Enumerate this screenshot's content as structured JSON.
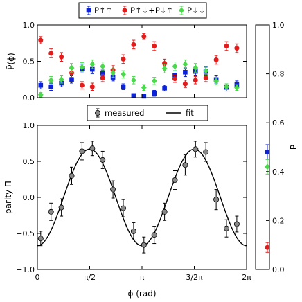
{
  "chart_data": [
    {
      "id": "top",
      "type": "scatter",
      "ylabel": "P̃(ϕ)",
      "xlim": [
        0,
        6.2832
      ],
      "ylim": [
        0,
        1.0
      ],
      "yticks": [
        {
          "v": 0.0,
          "label": "0.0"
        },
        {
          "v": 0.5,
          "label": "0.5"
        },
        {
          "v": 1.0,
          "label": "1.0"
        }
      ],
      "legend": {
        "placement": "top-outside",
        "entries": [
          {
            "label": "P↑↑",
            "color": "#0b22d9",
            "marker": "square"
          },
          {
            "label": "P↑↓+P↓↑",
            "color": "#e31b1b",
            "marker": "circle"
          },
          {
            "label": "P↓↓",
            "color": "#4ad94a",
            "marker": "diamond"
          }
        ]
      },
      "x": [
        0.1,
        0.41,
        0.72,
        1.03,
        1.34,
        1.65,
        1.96,
        2.27,
        2.58,
        2.89,
        3.2,
        3.51,
        3.82,
        4.13,
        4.44,
        4.75,
        5.06,
        5.37,
        5.68,
        5.99
      ],
      "series": [
        {
          "name": "P↑↑",
          "color": "#0b22d9",
          "marker": "square",
          "values": [
            0.17,
            0.15,
            0.2,
            0.25,
            0.4,
            0.39,
            0.33,
            0.28,
            0.15,
            0.03,
            0.02,
            0.06,
            0.13,
            0.31,
            0.35,
            0.36,
            0.36,
            0.25,
            0.14,
            0.18
          ],
          "err": [
            0.05,
            0.05,
            0.05,
            0.05,
            0.06,
            0.06,
            0.05,
            0.05,
            0.04,
            0.02,
            0.02,
            0.04,
            0.04,
            0.06,
            0.06,
            0.06,
            0.06,
            0.05,
            0.05,
            0.05
          ]
        },
        {
          "name": "P↑↓+P↓↑",
          "color": "#e31b1b",
          "marker": "circle",
          "values": [
            0.79,
            0.61,
            0.56,
            0.34,
            0.17,
            0.15,
            0.27,
            0.38,
            0.53,
            0.73,
            0.84,
            0.71,
            0.47,
            0.26,
            0.19,
            0.24,
            0.27,
            0.52,
            0.71,
            0.68
          ],
          "err": [
            0.05,
            0.06,
            0.06,
            0.06,
            0.05,
            0.05,
            0.05,
            0.06,
            0.06,
            0.06,
            0.04,
            0.06,
            0.06,
            0.05,
            0.05,
            0.05,
            0.05,
            0.06,
            0.06,
            0.06
          ]
        },
        {
          "name": "P↓↓",
          "color": "#4ad94a",
          "marker": "diamond",
          "values": [
            0.04,
            0.24,
            0.25,
            0.41,
            0.42,
            0.46,
            0.43,
            0.34,
            0.32,
            0.24,
            0.14,
            0.23,
            0.4,
            0.43,
            0.46,
            0.41,
            0.37,
            0.23,
            0.15,
            0.14
          ],
          "err": [
            0.03,
            0.05,
            0.05,
            0.06,
            0.06,
            0.06,
            0.06,
            0.06,
            0.05,
            0.05,
            0.04,
            0.05,
            0.06,
            0.06,
            0.06,
            0.06,
            0.06,
            0.05,
            0.04,
            0.04
          ]
        }
      ]
    },
    {
      "id": "bottom",
      "type": "scatter",
      "xlabel": "ϕ (rad)",
      "ylabel": "parity Π",
      "xlim": [
        0,
        6.2832
      ],
      "ylim": [
        -1.0,
        1.0
      ],
      "xticks": [
        {
          "v": 0,
          "label": "0"
        },
        {
          "v": 1.5708,
          "label": "π/2"
        },
        {
          "v": 3.1416,
          "label": "π"
        },
        {
          "v": 4.7124,
          "label": "3/2π"
        },
        {
          "v": 6.2832,
          "label": "2π"
        }
      ],
      "yticks": [
        {
          "v": -1.0,
          "label": "−1.0"
        },
        {
          "v": -0.5,
          "label": "−0.5"
        },
        {
          "v": 0.0,
          "label": "0.0"
        },
        {
          "v": 0.5,
          "label": "0.5"
        },
        {
          "v": 1.0,
          "label": "1.0"
        }
      ],
      "legend": {
        "placement": "top-outside",
        "entries": [
          {
            "label": "measured",
            "marker": "circle-errorbar",
            "color": "#888888"
          },
          {
            "label": "fit",
            "marker": "line",
            "color": "#000000"
          }
        ]
      },
      "measured": {
        "name": "measured",
        "color": "#888888",
        "x": [
          0.1,
          0.41,
          0.72,
          1.03,
          1.34,
          1.65,
          1.96,
          2.27,
          2.58,
          2.89,
          3.2,
          3.51,
          3.82,
          4.13,
          4.44,
          4.75,
          5.06,
          5.37,
          5.68,
          5.99
        ],
        "values": [
          -0.57,
          -0.2,
          -0.14,
          0.3,
          0.64,
          0.68,
          0.52,
          0.11,
          -0.15,
          -0.47,
          -0.66,
          -0.52,
          -0.2,
          0.24,
          0.45,
          0.67,
          0.63,
          -0.03,
          -0.43,
          -0.37
        ],
        "err": [
          0.1,
          0.12,
          0.12,
          0.12,
          0.12,
          0.1,
          0.12,
          0.12,
          0.12,
          0.12,
          0.11,
          0.12,
          0.12,
          0.13,
          0.14,
          0.11,
          0.13,
          0.14,
          0.12,
          0.11
        ]
      },
      "fit": {
        "name": "fit",
        "amplitude": 0.67,
        "periods": 2,
        "phase_of_max": 1.57
      }
    },
    {
      "id": "right",
      "type": "scatter",
      "ylabel": "P",
      "ylim": [
        0,
        1.0
      ],
      "yticks": [
        {
          "v": 0.0,
          "label": "0.0"
        },
        {
          "v": 0.2,
          "label": "0.2"
        },
        {
          "v": 0.4,
          "label": "0.4"
        },
        {
          "v": 0.6,
          "label": "0.6"
        },
        {
          "v": 0.8,
          "label": "0.8"
        },
        {
          "v": 1.0,
          "label": "1.0"
        }
      ],
      "points": [
        {
          "series": "P↑↑",
          "color": "#0b22d9",
          "marker": "square",
          "value": 0.48,
          "err": 0.03
        },
        {
          "series": "P↓↓",
          "color": "#4ad94a",
          "marker": "diamond",
          "value": 0.42,
          "err": 0.03
        },
        {
          "series": "P↑↓+P↓↑",
          "color": "#e31b1b",
          "marker": "circle",
          "value": 0.09,
          "err": 0.02
        }
      ]
    }
  ]
}
